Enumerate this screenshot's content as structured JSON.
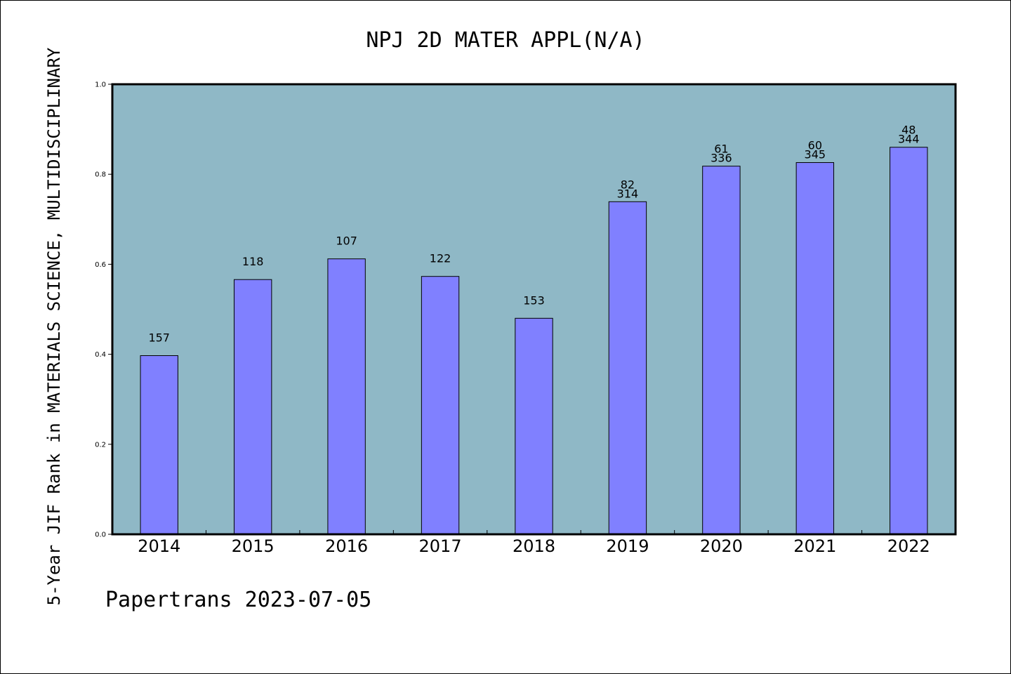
{
  "chart_data": {
    "type": "bar",
    "title": "NPJ 2D MATER APPL(N/A)",
    "xlabel": "",
    "ylabel": "5-Year JIF Rank in MATERIALS SCIENCE, MULTIDISCIPLINARY",
    "ylim": [
      0,
      1.0
    ],
    "yticks": [
      "0.0",
      "0.2",
      "0.4",
      "0.6",
      "0.8",
      "1.0"
    ],
    "grid": false,
    "categories": [
      "2014",
      "2015",
      "2016",
      "2017",
      "2018",
      "2019",
      "2020",
      "2021",
      "2022"
    ],
    "values": [
      0.397,
      0.566,
      0.612,
      0.573,
      0.48,
      0.739,
      0.818,
      0.826,
      0.86
    ],
    "labels": [
      [
        "157"
      ],
      [
        "118"
      ],
      [
        "107"
      ],
      [
        "122"
      ],
      [
        "153"
      ],
      [
        "82",
        "314"
      ],
      [
        "61",
        "336"
      ],
      [
        "60",
        "345"
      ],
      [
        "48",
        "344"
      ]
    ],
    "colors": {
      "plot_bg": "#8fb8c6",
      "bar": "#8080ff",
      "bar_edge": "#000000"
    }
  },
  "footer": "Papertrans 2023-07-05"
}
